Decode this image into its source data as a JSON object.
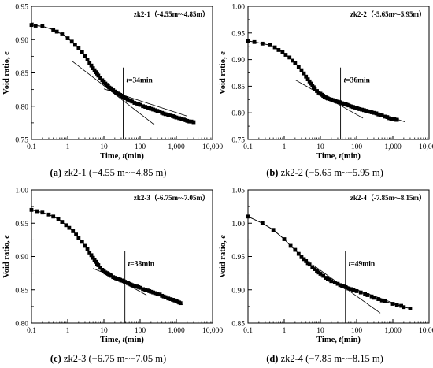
{
  "chart_data": [
    {
      "type": "scatter",
      "title": "zk2-1（-4.55m~-4.85m）",
      "caption_letter": "(a)",
      "caption_text": " zk2-1 (−4.55 m~−4.85 m)",
      "xlabel_prefix": "Time, ",
      "xlabel_var": "t",
      "xlabel_suffix": "(min)",
      "ylabel_prefix": "Void ratio, ",
      "ylabel_var": "e",
      "x_scale": "log",
      "xlim": [
        0.1,
        10000
      ],
      "ylim": [
        0.75,
        0.95
      ],
      "x_ticks": [
        0.1,
        1,
        10,
        100,
        1000,
        10000
      ],
      "x_tick_labels": [
        "0.1",
        "1",
        "10",
        "100",
        "1,000",
        "10,000"
      ],
      "y_ticks": [
        0.75,
        0.8,
        0.85,
        0.9,
        0.95
      ],
      "y_tick_labels": [
        "0.75",
        "0.80",
        "0.85",
        "0.90",
        "0.95"
      ],
      "annotation_var": "t",
      "annotation_text": "=34min",
      "t_value": 34,
      "tangent1": {
        "x": [
          1.3,
          250
        ],
        "y": [
          0.868,
          0.772
        ]
      },
      "tangent2": {
        "x": [
          10,
          2000
        ],
        "y": [
          0.826,
          0.785
        ]
      },
      "points": {
        "x": [
          0.1,
          0.13,
          0.2,
          0.4,
          0.5,
          0.7,
          1.0,
          1.3,
          1.6,
          2.0,
          2.5,
          3.0,
          3.5,
          4.0,
          4.5,
          5.0,
          5.5,
          6.0,
          6.5,
          7.0,
          8.0,
          9.0,
          10,
          11,
          12,
          13,
          14,
          15,
          16,
          18,
          20,
          22,
          24,
          26,
          28,
          30,
          32,
          34,
          37,
          40,
          45,
          50,
          55,
          60,
          70,
          80,
          90,
          100,
          120,
          140,
          160,
          180,
          200,
          230,
          260,
          300,
          350,
          400,
          450,
          500,
          600,
          700,
          800,
          900,
          1000,
          1200,
          1400,
          1600,
          1800,
          2000,
          2300,
          2600,
          3000
        ],
        "y": [
          0.922,
          0.921,
          0.92,
          0.915,
          0.912,
          0.908,
          0.902,
          0.897,
          0.892,
          0.887,
          0.881,
          0.875,
          0.87,
          0.865,
          0.861,
          0.857,
          0.854,
          0.851,
          0.849,
          0.846,
          0.842,
          0.839,
          0.836,
          0.834,
          0.832,
          0.83,
          0.828,
          0.827,
          0.826,
          0.824,
          0.822,
          0.82,
          0.819,
          0.818,
          0.817,
          0.816,
          0.815,
          0.814,
          0.813,
          0.812,
          0.81,
          0.809,
          0.808,
          0.807,
          0.805,
          0.804,
          0.803,
          0.802,
          0.8,
          0.799,
          0.798,
          0.797,
          0.796,
          0.795,
          0.794,
          0.793,
          0.792,
          0.79,
          0.789,
          0.788,
          0.787,
          0.786,
          0.785,
          0.784,
          0.783,
          0.782,
          0.781,
          0.78,
          0.779,
          0.778,
          0.777,
          0.777,
          0.776
        ]
      }
    },
    {
      "type": "scatter",
      "title": "zk2-2（-5.65m~-5.95m）",
      "caption_letter": "(b)",
      "caption_text": " zk2-2 (−5.65 m~−5.95 m)",
      "xlabel_prefix": "Time, ",
      "xlabel_var": "t",
      "xlabel_suffix": "(min)",
      "ylabel_prefix": "Void ratio, ",
      "ylabel_var": "e",
      "x_scale": "log",
      "xlim": [
        0.1,
        10000
      ],
      "ylim": [
        0.75,
        1.0
      ],
      "x_ticks": [
        0.1,
        1,
        10,
        100,
        1000,
        10000
      ],
      "x_tick_labels": [
        "0.1",
        "1",
        "10",
        "100",
        "1,000",
        "10,000"
      ],
      "y_ticks": [
        0.75,
        0.8,
        0.85,
        0.9,
        0.95,
        1.0
      ],
      "y_tick_labels": [
        "0.75",
        "0.80",
        "0.85",
        "0.90",
        "0.95",
        "1.00"
      ],
      "annotation_var": "t",
      "annotation_text": "=36min",
      "t_value": 36,
      "tangent1": {
        "x": [
          2,
          150
        ],
        "y": [
          0.862,
          0.79
        ]
      },
      "tangent2": {
        "x": [
          10,
          2200
        ],
        "y": [
          0.834,
          0.783
        ]
      },
      "points": {
        "x": [
          0.1,
          0.15,
          0.25,
          0.4,
          0.55,
          0.7,
          0.9,
          1.1,
          1.4,
          1.7,
          2.0,
          2.5,
          3.0,
          3.5,
          4.0,
          4.5,
          5.0,
          5.5,
          6.0,
          6.5,
          7.0,
          8.0,
          9.0,
          10,
          11,
          12,
          13,
          14,
          15,
          16,
          18,
          20,
          22,
          24,
          26,
          28,
          30,
          32,
          34,
          36,
          40,
          45,
          50,
          55,
          60,
          70,
          80,
          90,
          100,
          120,
          140,
          160,
          180,
          200,
          230,
          260,
          300,
          350,
          400,
          450,
          500,
          600,
          700,
          800,
          900,
          1000,
          1100,
          1200,
          1300
        ],
        "y": [
          0.935,
          0.933,
          0.93,
          0.927,
          0.923,
          0.918,
          0.914,
          0.909,
          0.904,
          0.898,
          0.893,
          0.886,
          0.88,
          0.874,
          0.868,
          0.863,
          0.859,
          0.855,
          0.851,
          0.848,
          0.845,
          0.841,
          0.838,
          0.836,
          0.834,
          0.832,
          0.83,
          0.829,
          0.828,
          0.827,
          0.826,
          0.825,
          0.824,
          0.823,
          0.822,
          0.821,
          0.821,
          0.82,
          0.82,
          0.819,
          0.818,
          0.817,
          0.816,
          0.815,
          0.814,
          0.812,
          0.811,
          0.81,
          0.809,
          0.807,
          0.806,
          0.805,
          0.804,
          0.803,
          0.802,
          0.801,
          0.8,
          0.799,
          0.797,
          0.796,
          0.795,
          0.793,
          0.792,
          0.79,
          0.789,
          0.788,
          0.788,
          0.787,
          0.787
        ]
      }
    },
    {
      "type": "scatter",
      "title": "zk2-3（-6.75m~-7.05m）",
      "caption_letter": "(c)",
      "caption_text": " zk2-3 (−6.75 m~−7.05 m)",
      "xlabel_prefix": "Time, ",
      "xlabel_var": "t",
      "xlabel_suffix": "(min)",
      "ylabel_prefix": "Void ratio, ",
      "ylabel_var": "e",
      "x_scale": "log",
      "xlim": [
        0.1,
        10000
      ],
      "ylim": [
        0.8,
        1.0
      ],
      "x_ticks": [
        0.1,
        1,
        10,
        100,
        1000,
        10000
      ],
      "x_tick_labels": [
        "0.1",
        "1",
        "10",
        "100",
        "1,000",
        "10,000"
      ],
      "y_ticks": [
        0.8,
        0.85,
        0.9,
        0.95,
        1.0
      ],
      "y_tick_labels": [
        "0.80",
        "0.85",
        "0.90",
        "0.95",
        "1.00"
      ],
      "annotation_var": "t",
      "annotation_text": "=38min",
      "t_value": 38,
      "tangent1": {
        "x": [
          8,
          150
        ],
        "y": [
          0.88,
          0.842
        ]
      },
      "tangent2": {
        "x": [
          5,
          1500
        ],
        "y": [
          0.882,
          0.828
        ]
      },
      "points": {
        "x": [
          0.1,
          0.14,
          0.2,
          0.3,
          0.4,
          0.55,
          0.7,
          0.9,
          1.1,
          1.4,
          1.7,
          2.0,
          2.5,
          3.0,
          3.5,
          4.0,
          4.5,
          5.0,
          5.5,
          6.0,
          6.5,
          7.0,
          8.0,
          9.0,
          10,
          11,
          12,
          13,
          14,
          15,
          16,
          18,
          20,
          22,
          24,
          26,
          28,
          30,
          32,
          35,
          38,
          42,
          46,
          50,
          55,
          60,
          70,
          80,
          90,
          100,
          120,
          140,
          160,
          180,
          200,
          230,
          260,
          300,
          350,
          400,
          450,
          500,
          600,
          700,
          800,
          900,
          1000,
          1100,
          1200,
          1300
        ],
        "y": [
          0.97,
          0.968,
          0.966,
          0.963,
          0.96,
          0.956,
          0.952,
          0.947,
          0.943,
          0.938,
          0.933,
          0.928,
          0.922,
          0.916,
          0.911,
          0.906,
          0.902,
          0.898,
          0.895,
          0.892,
          0.889,
          0.887,
          0.883,
          0.88,
          0.878,
          0.876,
          0.875,
          0.874,
          0.873,
          0.872,
          0.871,
          0.869,
          0.868,
          0.867,
          0.866,
          0.866,
          0.865,
          0.864,
          0.864,
          0.863,
          0.862,
          0.861,
          0.86,
          0.859,
          0.858,
          0.857,
          0.856,
          0.855,
          0.854,
          0.853,
          0.851,
          0.85,
          0.849,
          0.848,
          0.847,
          0.846,
          0.845,
          0.844,
          0.843,
          0.841,
          0.84,
          0.839,
          0.837,
          0.836,
          0.835,
          0.834,
          0.833,
          0.832,
          0.831,
          0.83
        ]
      }
    },
    {
      "type": "scatter",
      "title": "zk2-4（-7.85m~-8.15m）",
      "caption_letter": "(d)",
      "caption_text": " zk2-4 (−7.85 m~−8.15 m)",
      "xlabel_prefix": "Time, ",
      "xlabel_var": "t",
      "xlabel_suffix": "(min)",
      "ylabel_prefix": "Void ratio, ",
      "ylabel_var": "e",
      "x_scale": "log",
      "xlim": [
        0.1,
        10000
      ],
      "ylim": [
        0.85,
        1.05
      ],
      "x_ticks": [
        0.1,
        1,
        10,
        100,
        1000,
        10000
      ],
      "x_tick_labels": [
        "0.1",
        "1",
        "10",
        "100",
        "1,000",
        "10,000"
      ],
      "y_ticks": [
        0.85,
        0.9,
        0.95,
        1.0,
        1.05
      ],
      "y_tick_labels": [
        "0.85",
        "0.90",
        "0.95",
        "1.00",
        "1.05"
      ],
      "annotation_var": "t",
      "annotation_text": "=49min",
      "t_value": 49,
      "tangent1": {
        "x": [
          6,
          450
        ],
        "y": [
          0.938,
          0.865
        ]
      },
      "tangent2": {
        "x": [
          10,
          1500
        ],
        "y": [
          0.92,
          0.877
        ]
      },
      "points": {
        "x": [
          0.1,
          0.25,
          0.5,
          1.0,
          1.5,
          2.0,
          2.5,
          3.0,
          3.5,
          4.0,
          4.5,
          5.0,
          6.0,
          7.0,
          8.0,
          9.0,
          10,
          12,
          14,
          16,
          18,
          20,
          25,
          30,
          35,
          40,
          45,
          50,
          60,
          70,
          80,
          100,
          130,
          170,
          200,
          260,
          300,
          400,
          500,
          600,
          1000,
          1300,
          1700,
          2000,
          3000
        ],
        "y": [
          1.01,
          1.0,
          0.99,
          0.976,
          0.966,
          0.96,
          0.954,
          0.949,
          0.946,
          0.943,
          0.94,
          0.938,
          0.934,
          0.931,
          0.928,
          0.926,
          0.924,
          0.921,
          0.918,
          0.916,
          0.915,
          0.913,
          0.911,
          0.909,
          0.907,
          0.906,
          0.905,
          0.904,
          0.902,
          0.901,
          0.9,
          0.898,
          0.896,
          0.894,
          0.892,
          0.89,
          0.888,
          0.886,
          0.884,
          0.883,
          0.879,
          0.877,
          0.876,
          0.874,
          0.872
        ]
      }
    }
  ]
}
